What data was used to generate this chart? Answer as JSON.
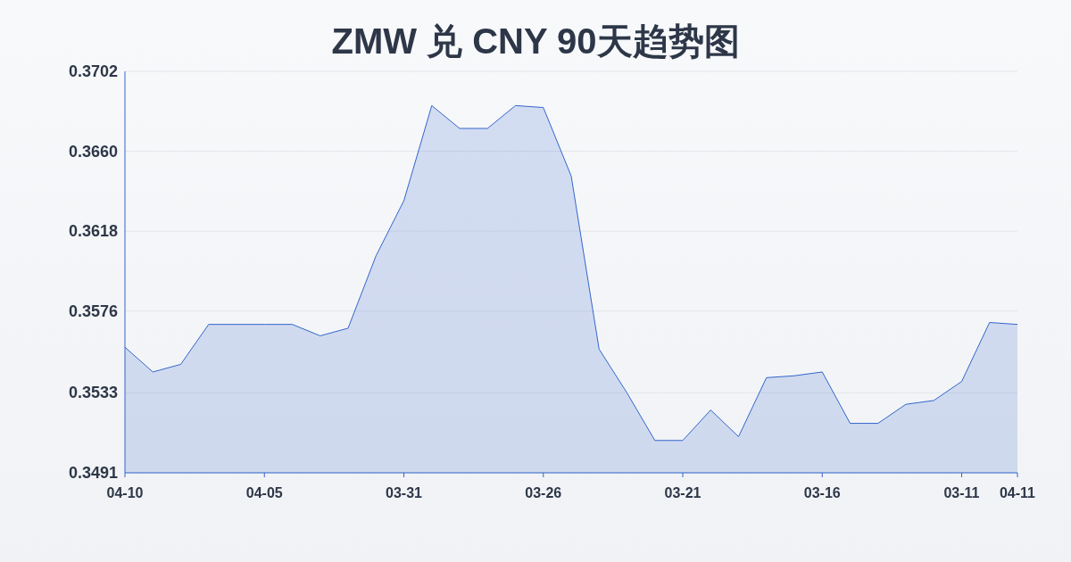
{
  "chart_data": {
    "type": "area",
    "title": "ZMW 兑 CNY 90天趋势图",
    "categories": [
      "04-10",
      null,
      null,
      null,
      null,
      "04-05",
      null,
      null,
      null,
      null,
      "03-31",
      null,
      null,
      null,
      null,
      "03-26",
      null,
      null,
      null,
      null,
      "03-21",
      null,
      null,
      null,
      null,
      "03-16",
      null,
      null,
      null,
      null,
      "03-11",
      null,
      "04-11"
    ],
    "series": [
      {
        "color": "#3366cc",
        "values": [
          0.3557,
          0.3544,
          0.3548,
          0.3569,
          0.3569,
          0.3569,
          0.3569,
          0.3563,
          0.3567,
          0.3605,
          0.3634,
          0.3684,
          0.3672,
          0.3672,
          0.3684,
          0.3683,
          0.3647,
          0.3556,
          0.3533,
          0.3508,
          0.3508,
          0.3524,
          0.351,
          0.3541,
          0.3542,
          0.3544,
          0.3517,
          0.3517,
          0.3527,
          0.3529,
          0.3539,
          0.357,
          0.3569
        ]
      }
    ],
    "ylim": [
      0.3491,
      0.3702
    ],
    "yticks": [
      {
        "value": 0.3491,
        "label": "0.3491"
      },
      {
        "value": 0.3533,
        "label": "0.3533"
      },
      {
        "value": 0.3576,
        "label": "0.3576"
      },
      {
        "value": 0.3618,
        "label": "0.3618"
      },
      {
        "value": 0.366,
        "label": "0.3660"
      },
      {
        "value": 0.3702,
        "label": "0.3702"
      }
    ],
    "grid": "y"
  }
}
